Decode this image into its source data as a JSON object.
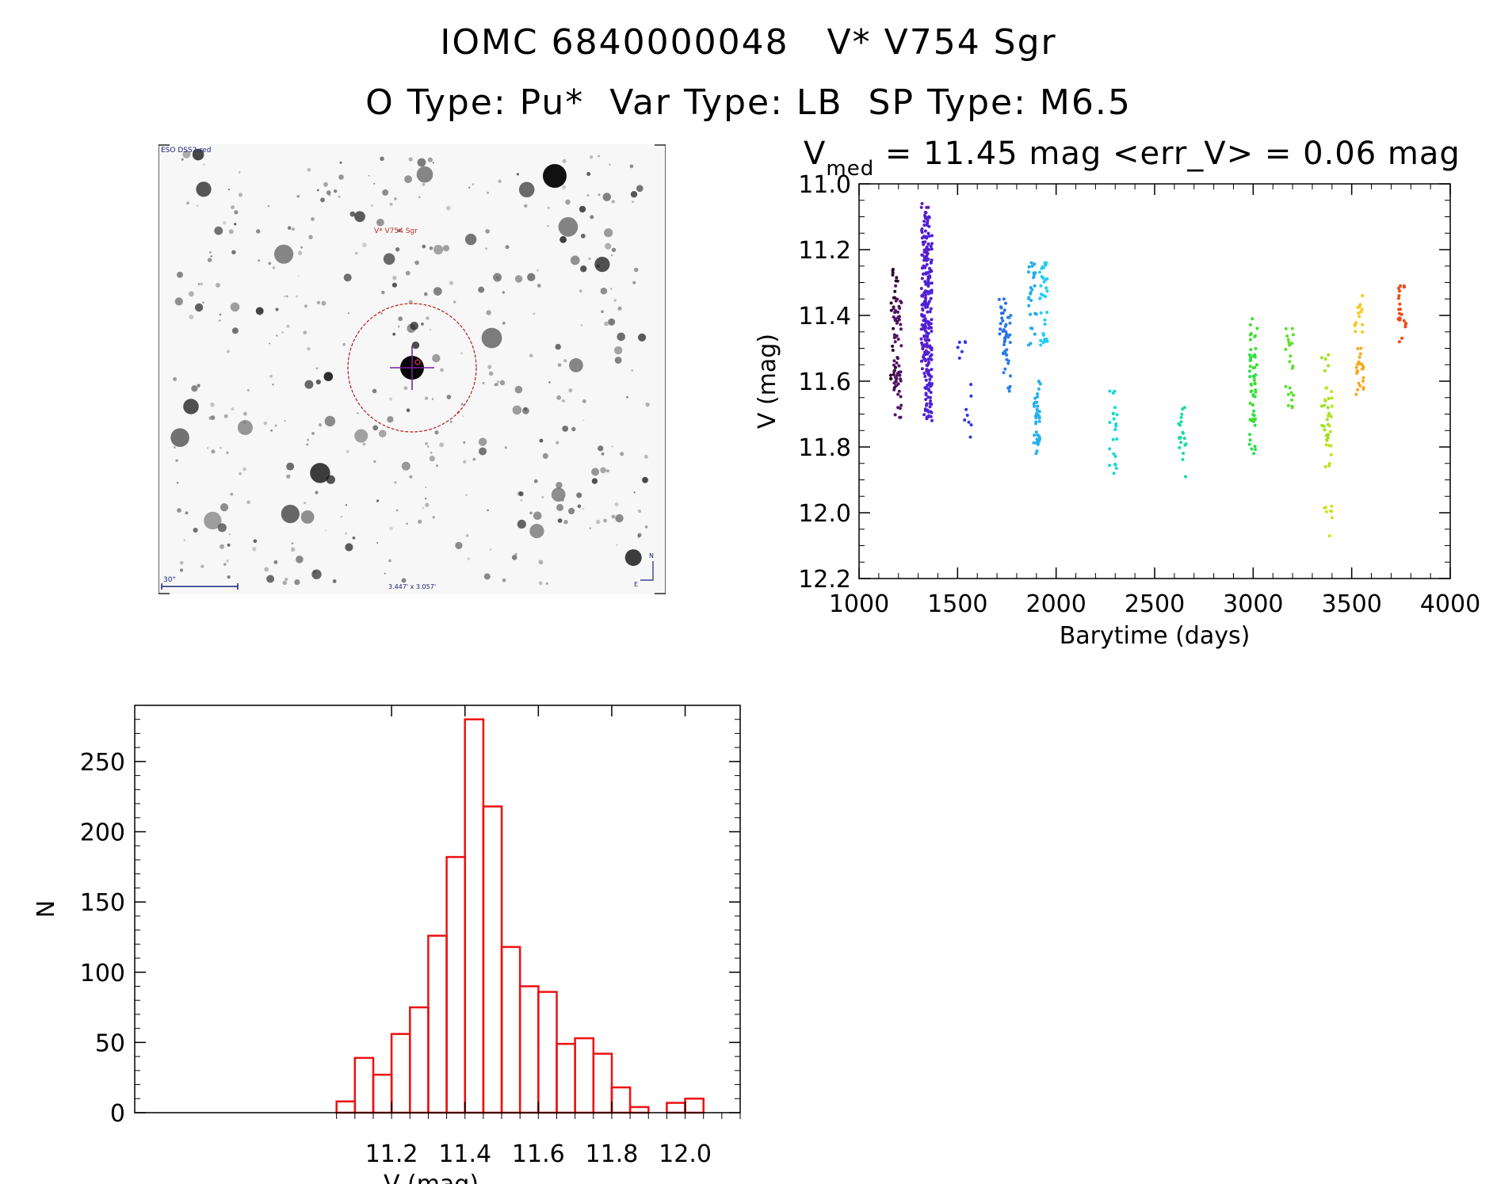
{
  "header": {
    "line1": "IOMC 6840000048   V* V754 Sgr",
    "line2": "O Type: Pu*  Var Type: LB  SP Type: M6.5"
  },
  "finder": {
    "survey_label": "ESO DSS2-red",
    "target_label": "V* V754 Sgr",
    "scale_label": "30\"",
    "size_label": "3.447' x 3.057'",
    "north_label": "N",
    "east_label": "E"
  },
  "lightcurve": {
    "vmed_symbol": "V",
    "vmed_sub": "med",
    "stats_text": " = 11.45 mag <err_V> = 0.06 mag"
  },
  "chart_data": [
    {
      "type": "scatter",
      "name": "light-curve",
      "title": "V_med = 11.45 mag <err_V> = 0.06 mag",
      "xlabel": "Barytime (days)",
      "ylabel": "V (mag)",
      "xlim": [
        1000,
        4000
      ],
      "ylim": [
        12.2,
        11.0
      ],
      "xticks": [
        "1000",
        "1500",
        "2000",
        "2500",
        "3000",
        "3500",
        "4000"
      ],
      "yticks": [
        "11.0",
        "11.2",
        "11.4",
        "11.6",
        "11.8",
        "12.0",
        "12.2"
      ],
      "groups": [
        {
          "x": 1180,
          "ymin": 11.26,
          "ymax": 11.62,
          "n": 30,
          "color": "#2a0a2e"
        },
        {
          "x": 1195,
          "ymin": 11.31,
          "ymax": 11.71,
          "n": 55,
          "color": "#55136a"
        },
        {
          "x": 1335,
          "ymin": 11.06,
          "ymax": 11.58,
          "n": 130,
          "color": "#5a1ec8"
        },
        {
          "x": 1350,
          "ymin": 11.1,
          "ymax": 11.72,
          "n": 140,
          "color": "#4d22d6"
        },
        {
          "x": 1520,
          "ymin": 11.48,
          "ymax": 11.53,
          "n": 6,
          "color": "#2a3ade"
        },
        {
          "x": 1550,
          "ymin": 11.61,
          "ymax": 11.77,
          "n": 8,
          "color": "#2a3ade"
        },
        {
          "x": 1730,
          "ymin": 11.35,
          "ymax": 11.48,
          "n": 22,
          "color": "#2a6ee6"
        },
        {
          "x": 1750,
          "ymin": 11.4,
          "ymax": 11.63,
          "n": 26,
          "color": "#2a80ea"
        },
        {
          "x": 1880,
          "ymin": 11.24,
          "ymax": 11.49,
          "n": 26,
          "color": "#22aaee"
        },
        {
          "x": 1905,
          "ymin": 11.6,
          "ymax": 11.82,
          "n": 40,
          "color": "#22b2ee"
        },
        {
          "x": 1935,
          "ymin": 11.24,
          "ymax": 11.49,
          "n": 36,
          "color": "#20cdf5"
        },
        {
          "x": 2290,
          "ymin": 11.63,
          "ymax": 11.88,
          "n": 22,
          "color": "#18d8d8"
        },
        {
          "x": 2640,
          "ymin": 11.68,
          "ymax": 11.89,
          "n": 20,
          "color": "#18dca5"
        },
        {
          "x": 2995,
          "ymin": 11.52,
          "ymax": 11.82,
          "n": 30,
          "color": "#2be04a"
        },
        {
          "x": 3005,
          "ymin": 11.41,
          "ymax": 11.72,
          "n": 28,
          "color": "#3ce02a"
        },
        {
          "x": 3185,
          "ymin": 11.44,
          "ymax": 11.68,
          "n": 22,
          "color": "#5ae02a"
        },
        {
          "x": 3365,
          "ymin": 11.52,
          "ymax": 11.78,
          "n": 24,
          "color": "#9ae41e"
        },
        {
          "x": 3380,
          "ymin": 11.62,
          "ymax": 11.86,
          "n": 16,
          "color": "#bfe21e"
        },
        {
          "x": 3380,
          "ymin": 11.98,
          "ymax": 12.07,
          "n": 8,
          "color": "#cfe21e"
        },
        {
          "x": 3535,
          "ymin": 11.34,
          "ymax": 11.45,
          "n": 14,
          "color": "#f6c81c"
        },
        {
          "x": 3540,
          "ymin": 11.5,
          "ymax": 11.64,
          "n": 24,
          "color": "#f6a81c"
        },
        {
          "x": 3755,
          "ymin": 11.31,
          "ymax": 11.48,
          "n": 22,
          "color": "#ee4a16"
        }
      ]
    },
    {
      "type": "bar",
      "name": "histogram",
      "title": "",
      "xlabel": "V (mag)",
      "ylabel": "N",
      "xlim": [
        10.5,
        12.15
      ],
      "ylim": [
        0,
        290
      ],
      "bin_width": 0.05,
      "bin_starts": [
        11.05,
        11.1,
        11.15,
        11.2,
        11.25,
        11.3,
        11.35,
        11.4,
        11.45,
        11.5,
        11.55,
        11.6,
        11.65,
        11.7,
        11.75,
        11.8,
        11.85,
        11.9,
        11.95,
        12.0,
        12.05
      ],
      "values": [
        8,
        39,
        27,
        56,
        75,
        126,
        182,
        280,
        218,
        118,
        90,
        86,
        49,
        53,
        42,
        18,
        4,
        0,
        7,
        10,
        0
      ],
      "xticks": [
        "11.2",
        "11.4",
        "11.6",
        "11.8",
        "12.0"
      ],
      "yticks": [
        "0",
        "50",
        "100",
        "150",
        "200",
        "250"
      ],
      "bar_color": "#ee1111"
    }
  ]
}
